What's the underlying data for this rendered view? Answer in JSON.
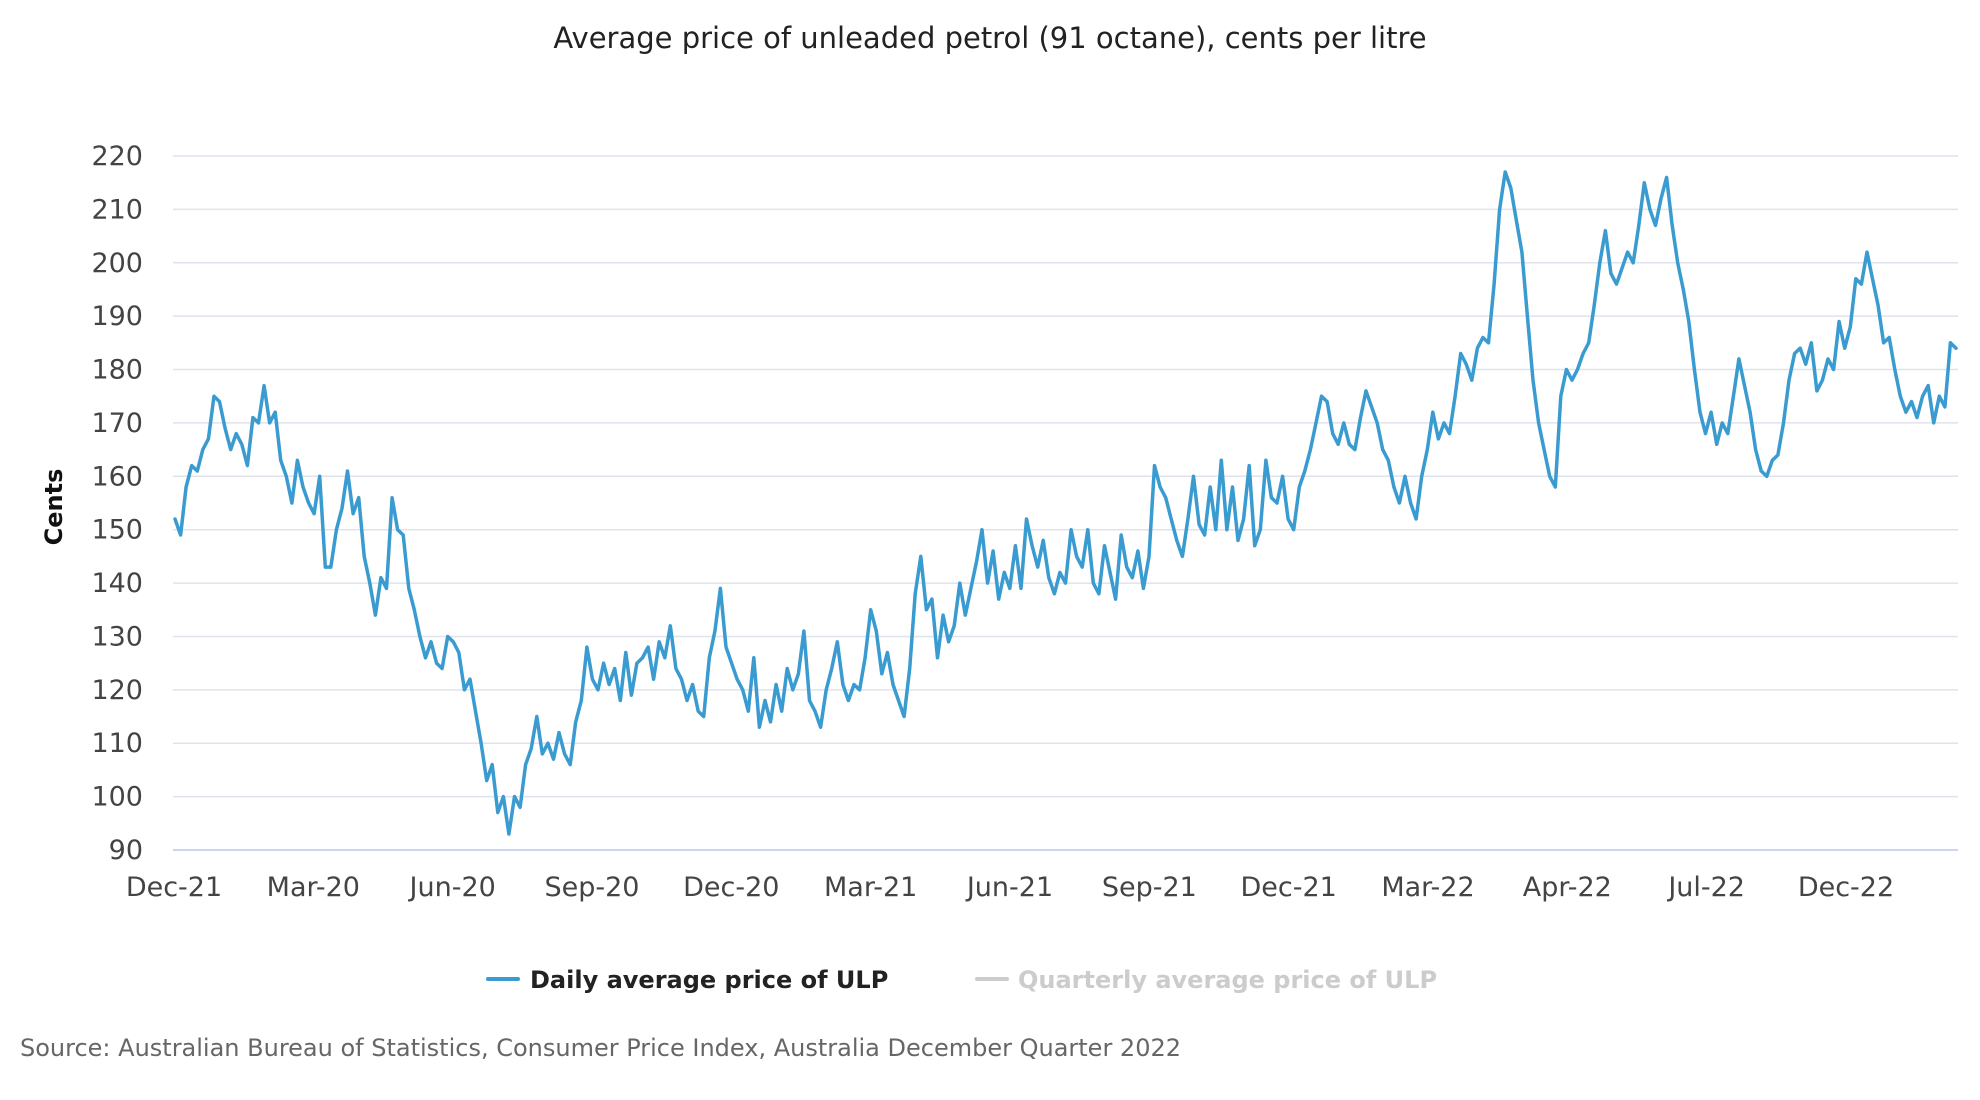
{
  "chart_data": {
    "type": "line",
    "title": "Average price of unleaded petrol (91 octane), cents per litre",
    "ylabel": "Cents",
    "xlabel": "",
    "ylim": [
      90,
      220
    ],
    "yticks": [
      90,
      100,
      110,
      120,
      130,
      140,
      150,
      160,
      170,
      180,
      190,
      200,
      210,
      220
    ],
    "x_tick_labels": [
      "Dec-21",
      "Mar-20",
      "Jun-20",
      "Sep-20",
      "Dec-20",
      "Mar-21",
      "Jun-21",
      "Sep-21",
      "Dec-21",
      "Mar-22",
      "Apr-22",
      "Jul-22",
      "Dec-22"
    ],
    "grid": true,
    "legend_position": "bottom-center",
    "series": [
      {
        "name": "Daily average price of ULP",
        "color": "#3a9bd0",
        "visible": true,
        "values": [
          152,
          149,
          158,
          162,
          161,
          165,
          167,
          175,
          174,
          169,
          165,
          168,
          166,
          162,
          171,
          170,
          177,
          170,
          172,
          163,
          160,
          155,
          163,
          158,
          155,
          153,
          160,
          143,
          143,
          150,
          154,
          161,
          153,
          156,
          145,
          140,
          134,
          141,
          139,
          156,
          150,
          149,
          139,
          135,
          130,
          126,
          129,
          125,
          124,
          130,
          129,
          127,
          120,
          122,
          116,
          110,
          103,
          106,
          97,
          100,
          93,
          100,
          98,
          106,
          109,
          115,
          108,
          110,
          107,
          112,
          108,
          106,
          114,
          118,
          128,
          122,
          120,
          125,
          121,
          124,
          118,
          127,
          119,
          125,
          126,
          128,
          122,
          129,
          126,
          132,
          124,
          122,
          118,
          121,
          116,
          115,
          126,
          131,
          139,
          128,
          125,
          122,
          120,
          116,
          126,
          113,
          118,
          114,
          121,
          116,
          124,
          120,
          123,
          131,
          118,
          116,
          113,
          120,
          124,
          129,
          121,
          118,
          121,
          120,
          126,
          135,
          131,
          123,
          127,
          121,
          118,
          115,
          124,
          138,
          145,
          135,
          137,
          126,
          134,
          129,
          132,
          140,
          134,
          139,
          144,
          150,
          140,
          146,
          137,
          142,
          139,
          147,
          139,
          152,
          147,
          143,
          148,
          141,
          138,
          142,
          140,
          150,
          145,
          143,
          150,
          140,
          138,
          147,
          142,
          137,
          149,
          143,
          141,
          146,
          139,
          145,
          162,
          158,
          156,
          152,
          148,
          145,
          152,
          160,
          151,
          149,
          158,
          150,
          163,
          150,
          158,
          148,
          152,
          162,
          147,
          150,
          163,
          156,
          155,
          160,
          152,
          150,
          158,
          161,
          165,
          170,
          175,
          174,
          168,
          166,
          170,
          166,
          165,
          171,
          176,
          173,
          170,
          165,
          163,
          158,
          155,
          160,
          155,
          152,
          160,
          165,
          172,
          167,
          170,
          168,
          175,
          183,
          181,
          178,
          184,
          186,
          185,
          196,
          210,
          217,
          214,
          208,
          202,
          190,
          178,
          170,
          165,
          160,
          158,
          175,
          180,
          178,
          180,
          183,
          185,
          192,
          200,
          206,
          198,
          196,
          199,
          202,
          200,
          207,
          215,
          210,
          207,
          212,
          216,
          207,
          200,
          195,
          189,
          180,
          172,
          168,
          172,
          166,
          170,
          168,
          175,
          182,
          177,
          172,
          165,
          161,
          160,
          163,
          164,
          170,
          178,
          183,
          184,
          181,
          185,
          176,
          178,
          182,
          180,
          189,
          184,
          188,
          197,
          196,
          202,
          197,
          192,
          185,
          186,
          180,
          175,
          172,
          174,
          171,
          175,
          177,
          170,
          175,
          173,
          185,
          184
        ]
      },
      {
        "name": "Quarterly average price of ULP",
        "color": "#cccccc",
        "visible": false
      }
    ]
  },
  "source": "Source: Australian Bureau of Statistics, Consumer Price Index, Australia December Quarter 2022"
}
